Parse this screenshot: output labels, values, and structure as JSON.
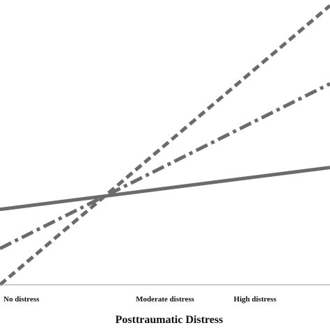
{
  "chart_data": {
    "type": "line",
    "title": "",
    "xlabel": "Posttraumatic Distress",
    "ylabel": "",
    "categories": [
      "No distress",
      "Moderate distress",
      "High distress"
    ],
    "x_range": [
      -0.05,
      1.05
    ],
    "ylim": [
      0,
      1
    ],
    "grid": false,
    "legend": "none",
    "series": [
      {
        "style": "solid",
        "color": "#6b6b6b",
        "points": [
          [
            -0.05,
            0.27
          ],
          [
            1.05,
            0.42
          ]
        ]
      },
      {
        "style": "dash-dot",
        "color": "#6b6b6b",
        "points": [
          [
            -0.05,
            0.13
          ],
          [
            1.05,
            0.72
          ]
        ]
      },
      {
        "style": "dashed",
        "color": "#6b6b6b",
        "points": [
          [
            -0.05,
            0.0
          ],
          [
            1.05,
            1.0
          ]
        ]
      }
    ]
  }
}
